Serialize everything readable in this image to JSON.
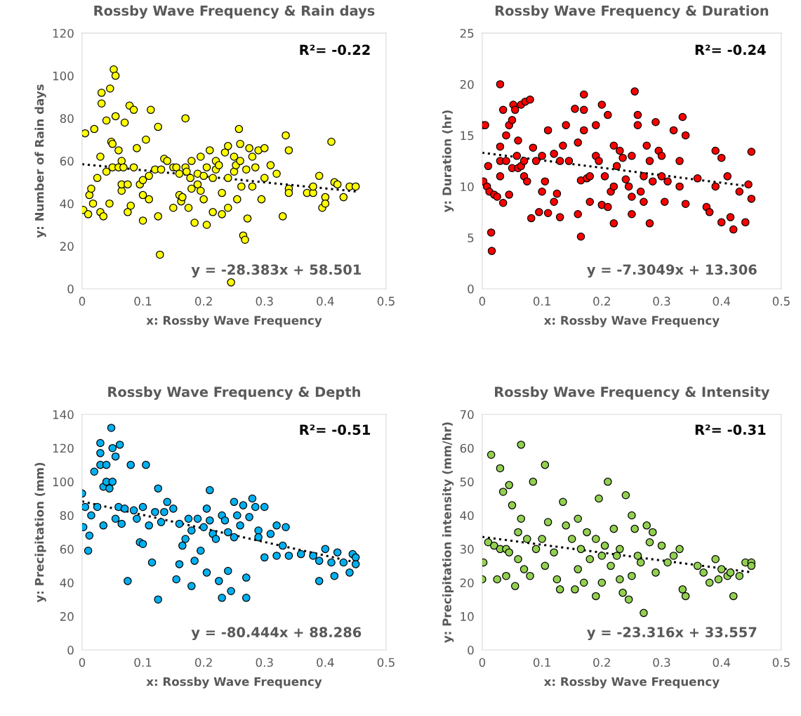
{
  "chart_data": [
    {
      "type": "scatter",
      "title": "Rossby Wave Frequency & Rain days",
      "xlabel": "x: Rossby Wave Frequency",
      "ylabel": "y: Number of Rain days",
      "annotations": [
        "R²= -0.22",
        "y = -28.383x + 58.501"
      ],
      "xlim": [
        0,
        0.5
      ],
      "xticks": [
        0,
        0.1,
        0.2,
        0.3,
        0.4,
        0.5
      ],
      "ylim": [
        0,
        120
      ],
      "yticks": [
        0,
        20,
        40,
        60,
        80,
        100,
        120
      ],
      "series": [
        {
          "marker": "circle",
          "color": "#ffff00",
          "x": [
            0.002,
            0.005,
            0.01,
            0.012,
            0.015,
            0.018,
            0.02,
            0.025,
            0.03,
            0.03,
            0.032,
            0.032,
            0.035,
            0.04,
            0.04,
            0.045,
            0.046,
            0.048,
            0.05,
            0.05,
            0.052,
            0.055,
            0.055,
            0.06,
            0.06,
            0.065,
            0.065,
            0.065,
            0.068,
            0.07,
            0.075,
            0.075,
            0.078,
            0.08,
            0.085,
            0.085,
            0.09,
            0.095,
            0.1,
            0.1,
            0.1,
            0.105,
            0.11,
            0.11,
            0.113,
            0.12,
            0.125,
            0.125,
            0.128,
            0.13,
            0.135,
            0.14,
            0.15,
            0.15,
            0.155,
            0.16,
            0.16,
            0.163,
            0.165,
            0.17,
            0.17,
            0.172,
            0.175,
            0.178,
            0.18,
            0.18,
            0.185,
            0.19,
            0.19,
            0.195,
            0.195,
            0.2,
            0.2,
            0.205,
            0.205,
            0.21,
            0.215,
            0.215,
            0.22,
            0.22,
            0.225,
            0.23,
            0.23,
            0.235,
            0.24,
            0.24,
            0.24,
            0.245,
            0.25,
            0.25,
            0.253,
            0.255,
            0.258,
            0.26,
            0.26,
            0.262,
            0.265,
            0.268,
            0.27,
            0.272,
            0.275,
            0.28,
            0.28,
            0.285,
            0.29,
            0.295,
            0.3,
            0.3,
            0.31,
            0.32,
            0.33,
            0.335,
            0.34,
            0.34,
            0.34,
            0.37,
            0.38,
            0.39,
            0.4,
            0.41,
            0.415,
            0.42,
            0.43,
            0.44,
            0.45,
            0.395,
            0.4,
            0.38
          ],
          "values": [
            37,
            73,
            35,
            44,
            47,
            40,
            75,
            52,
            62,
            36,
            87,
            92,
            34,
            55,
            79,
            40,
            94,
            69,
            57,
            68,
            103,
            100,
            81,
            57,
            65,
            46,
            49,
            60,
            57,
            78,
            36,
            49,
            86,
            39,
            84,
            57,
            66,
            49,
            51,
            32,
            44,
            70,
            53,
            42,
            84,
            56,
            76,
            34,
            16,
            56,
            61,
            60,
            57,
            38,
            57,
            54,
            44,
            41,
            43,
            80,
            57,
            55,
            38,
            52,
            60,
            47,
            31,
            49,
            54,
            62,
            46,
            42,
            53,
            57,
            30,
            65,
            52,
            36,
            56,
            60,
            58,
            45,
            35,
            64,
            67,
            52,
            38,
            3,
            62,
            55,
            58,
            42,
            75,
            68,
            60,
            48,
            25,
            23,
            56,
            33,
            66,
            62,
            48,
            57,
            65,
            42,
            66,
            52,
            58,
            54,
            34,
            72,
            65,
            47,
            45,
            45,
            45,
            53,
            43,
            69,
            50,
            49,
            43,
            48,
            48,
            38,
            40,
            48
          ]
        },
        {
          "type": "line",
          "line_style": "dotted",
          "color": "#000000",
          "x": [
            0,
            0.45
          ],
          "values": [
            58.5,
            45.7
          ]
        }
      ]
    },
    {
      "type": "scatter",
      "title": "Rossby Wave Frequency & Duration",
      "xlabel": "x: Rossby Wave Frequency",
      "ylabel": "y: Duration (hr)",
      "annotations": [
        "R²= -0.24",
        "y = -7.3049x + 13.306"
      ],
      "xlim": [
        0,
        0.5
      ],
      "xticks": [
        0,
        0.1,
        0.2,
        0.3,
        0.4,
        0.5
      ],
      "ylim": [
        0,
        25
      ],
      "yticks": [
        0,
        5,
        10,
        15,
        20,
        25
      ],
      "series": [
        {
          "marker": "circle",
          "color": "#ff0000",
          "x": [
            0.0,
            0.002,
            0.005,
            0.008,
            0.01,
            0.012,
            0.015,
            0.016,
            0.02,
            0.025,
            0.03,
            0.03,
            0.03,
            0.03,
            0.035,
            0.035,
            0.04,
            0.04,
            0.045,
            0.045,
            0.05,
            0.05,
            0.052,
            0.055,
            0.058,
            0.06,
            0.06,
            0.065,
            0.065,
            0.07,
            0.07,
            0.072,
            0.075,
            0.08,
            0.082,
            0.085,
            0.09,
            0.095,
            0.1,
            0.1,
            0.105,
            0.11,
            0.11,
            0.12,
            0.12,
            0.125,
            0.13,
            0.13,
            0.135,
            0.14,
            0.145,
            0.155,
            0.16,
            0.16,
            0.165,
            0.165,
            0.17,
            0.17,
            0.17,
            0.175,
            0.18,
            0.18,
            0.19,
            0.19,
            0.195,
            0.2,
            0.2,
            0.205,
            0.21,
            0.21,
            0.215,
            0.22,
            0.22,
            0.225,
            0.23,
            0.235,
            0.24,
            0.245,
            0.25,
            0.25,
            0.255,
            0.26,
            0.26,
            0.265,
            0.27,
            0.27,
            0.275,
            0.28,
            0.28,
            0.285,
            0.29,
            0.295,
            0.3,
            0.3,
            0.305,
            0.31,
            0.32,
            0.33,
            0.33,
            0.335,
            0.34,
            0.34,
            0.36,
            0.375,
            0.38,
            0.39,
            0.39,
            0.4,
            0.41,
            0.415,
            0.42,
            0.43,
            0.44,
            0.445,
            0.45,
            0.45,
            0.4,
            0.22,
            0.25
          ],
          "values": [
            16,
            10.5,
            16,
            10,
            12,
            9.5,
            5.5,
            3.7,
            9.2,
            9,
            11,
            13.9,
            12.5,
            20,
            17.5,
            8.4,
            15,
            12.5,
            16,
            9.2,
            16.5,
            11.8,
            18,
            17.5,
            13,
            14.5,
            11.8,
            12,
            18,
            12.5,
            11,
            18.3,
            10.5,
            18.5,
            6.9,
            13.8,
            12.5,
            7.5,
            13,
            9.5,
            10.5,
            7.4,
            15.5,
            13.2,
            8.5,
            9.3,
            12.5,
            7,
            14,
            16,
            12.5,
            17.6,
            14.3,
            7.3,
            10.6,
            5.1,
            17.5,
            15.5,
            19,
            10.8,
            11,
            8.5,
            16,
            13,
            12.5,
            18,
            8.2,
            11,
            17,
            8,
            9.5,
            14,
            10,
            12,
            13.5,
            12.8,
            10.7,
            10,
            9,
            13,
            19.3,
            17,
            16,
            9.5,
            11,
            8.5,
            14,
            12.5,
            6.4,
            10.5,
            16.3,
            13.5,
            13,
            11,
            8.5,
            10.5,
            15.5,
            10,
            12.5,
            16.8,
            15,
            8.3,
            10.8,
            8,
            7.5,
            10,
            13.5,
            12.8,
            11,
            7,
            5.8,
            9.5,
            6.5,
            10.2,
            13.4,
            8.8,
            6.5,
            6.4,
            7.3
          ]
        },
        {
          "type": "line",
          "line_style": "dotted",
          "color": "#000000",
          "x": [
            0,
            0.45
          ],
          "values": [
            13.3,
            10.0
          ]
        }
      ]
    },
    {
      "type": "scatter",
      "title": "Rossby Wave Frequency & Depth",
      "xlabel": "x: Rossby Wave Frequency",
      "ylabel": "y: Precipitation (mm)",
      "annotations": [
        "R²= -0.51",
        "y = -80.444x + 88.286"
      ],
      "xlim": [
        0,
        0.5
      ],
      "xticks": [
        0,
        0.1,
        0.2,
        0.3,
        0.4,
        0.5
      ],
      "ylim": [
        0,
        140
      ],
      "yticks": [
        0,
        20,
        40,
        60,
        80,
        100,
        120,
        140
      ],
      "series": [
        {
          "marker": "circle",
          "color": "#00b0f0",
          "x": [
            0.0,
            0.002,
            0.005,
            0.01,
            0.012,
            0.015,
            0.02,
            0.025,
            0.03,
            0.03,
            0.03,
            0.035,
            0.035,
            0.04,
            0.04,
            0.045,
            0.048,
            0.05,
            0.05,
            0.055,
            0.055,
            0.06,
            0.062,
            0.065,
            0.07,
            0.075,
            0.08,
            0.085,
            0.09,
            0.095,
            0.1,
            0.1,
            0.105,
            0.11,
            0.115,
            0.12,
            0.125,
            0.125,
            0.13,
            0.135,
            0.14,
            0.15,
            0.155,
            0.16,
            0.16,
            0.165,
            0.17,
            0.175,
            0.18,
            0.185,
            0.19,
            0.195,
            0.2,
            0.205,
            0.205,
            0.21,
            0.215,
            0.22,
            0.225,
            0.23,
            0.23,
            0.235,
            0.24,
            0.245,
            0.25,
            0.25,
            0.255,
            0.26,
            0.265,
            0.27,
            0.27,
            0.275,
            0.28,
            0.285,
            0.29,
            0.3,
            0.3,
            0.31,
            0.32,
            0.33,
            0.335,
            0.34,
            0.36,
            0.38,
            0.39,
            0.39,
            0.4,
            0.41,
            0.415,
            0.42,
            0.43,
            0.44,
            0.445,
            0.45,
            0.45,
            0.29,
            0.32,
            0.24,
            0.21,
            0.18
          ],
          "values": [
            93,
            73,
            85,
            59,
            68,
            80,
            106,
            85,
            117,
            123,
            110,
            97,
            74,
            100,
            110,
            96,
            132,
            120,
            100,
            115,
            78,
            85,
            122,
            75,
            84,
            41,
            110,
            83,
            78,
            64,
            85,
            63,
            110,
            74,
            52,
            82,
            30,
            96,
            76,
            82,
            88,
            84,
            42,
            75,
            51,
            62,
            66,
            78,
            71,
            53,
            78,
            59,
            73,
            84,
            46,
            95,
            69,
            66,
            41,
            80,
            31,
            77,
            70,
            35,
            88,
            67,
            80,
            74,
            86,
            43,
            31,
            79,
            90,
            85,
            71,
            85,
            55,
            69,
            74,
            62,
            73,
            56,
            57,
            56,
            53,
            41,
            60,
            52,
            44,
            58,
            52,
            46,
            57,
            55,
            51,
            67,
            56,
            47,
            77,
            38
          ]
        },
        {
          "type": "line",
          "line_style": "dotted",
          "color": "#000000",
          "x": [
            0,
            0.45
          ],
          "values": [
            88.3,
            52.1
          ]
        }
      ]
    },
    {
      "type": "scatter",
      "title": "Rossby Wave Frequency & Intensity",
      "xlabel": "x: Rossby Wave Frequency",
      "ylabel": "y: Precipitation intensity (mm/hr)",
      "annotations": [
        "R²= -0.31",
        "y = -23.316x + 33.557"
      ],
      "xlim": [
        0,
        0.5
      ],
      "xticks": [
        0,
        0.1,
        0.2,
        0.3,
        0.4,
        0.5
      ],
      "ylim": [
        0,
        70
      ],
      "yticks": [
        0,
        10,
        20,
        30,
        40,
        50,
        60,
        70
      ],
      "series": [
        {
          "marker": "circle",
          "color": "#92d050",
          "x": [
            0.0,
            0.002,
            0.01,
            0.015,
            0.02,
            0.025,
            0.03,
            0.03,
            0.035,
            0.04,
            0.04,
            0.045,
            0.045,
            0.05,
            0.055,
            0.06,
            0.06,
            0.065,
            0.065,
            0.07,
            0.075,
            0.08,
            0.085,
            0.09,
            0.1,
            0.105,
            0.105,
            0.11,
            0.12,
            0.125,
            0.13,
            0.135,
            0.14,
            0.15,
            0.155,
            0.16,
            0.16,
            0.165,
            0.17,
            0.175,
            0.18,
            0.19,
            0.195,
            0.2,
            0.2,
            0.205,
            0.21,
            0.215,
            0.22,
            0.225,
            0.23,
            0.235,
            0.24,
            0.245,
            0.25,
            0.25,
            0.255,
            0.26,
            0.265,
            0.27,
            0.275,
            0.28,
            0.285,
            0.29,
            0.3,
            0.31,
            0.32,
            0.33,
            0.335,
            0.34,
            0.36,
            0.37,
            0.39,
            0.395,
            0.4,
            0.41,
            0.415,
            0.42,
            0.43,
            0.44,
            0.45,
            0.45,
            0.38,
            0.23,
            0.19
          ],
          "values": [
            21,
            26,
            32,
            58,
            31,
            21,
            54,
            30,
            47,
            30,
            22,
            49,
            29,
            43,
            19,
            35,
            27,
            61,
            39,
            24,
            33,
            22,
            50,
            30,
            33,
            55,
            25,
            38,
            29,
            21,
            18,
            44,
            37,
            33,
            18,
            39,
            24,
            30,
            20,
            35,
            27,
            33,
            45,
            28,
            20,
            31,
            50,
            25,
            36,
            28,
            21,
            17,
            46,
            15,
            40,
            22,
            36,
            28,
            26,
            11,
            37,
            32,
            35,
            23,
            31,
            26,
            28,
            30,
            18,
            16,
            25,
            23,
            27,
            21,
            24,
            22,
            23,
            16,
            22,
            26,
            26,
            25,
            20,
            30,
            16
          ]
        },
        {
          "type": "line",
          "line_style": "dotted",
          "color": "#000000",
          "x": [
            0,
            0.45
          ],
          "values": [
            33.6,
            23.1
          ]
        }
      ]
    }
  ]
}
